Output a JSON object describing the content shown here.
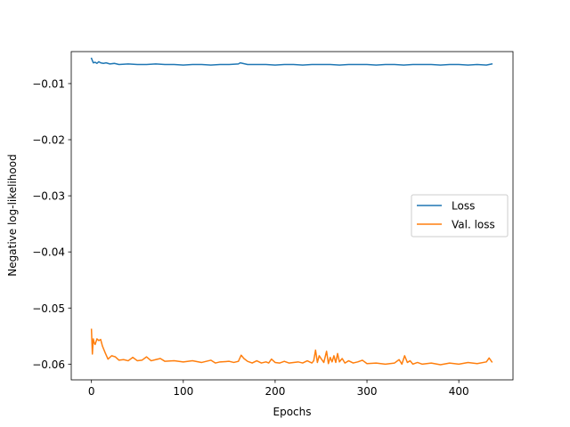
{
  "chart_data": {
    "type": "line",
    "xlabel": "Epochs",
    "ylabel": "Negative log-likelihood",
    "xlim": [
      -22,
      459
    ],
    "ylim": [
      -0.0628,
      -0.0043
    ],
    "xticks": [
      0,
      100,
      200,
      300,
      400
    ],
    "yticks": [
      -0.01,
      -0.02,
      -0.03,
      -0.04,
      -0.05,
      -0.06
    ],
    "ytick_labels": [
      "−0.01",
      "−0.02",
      "−0.03",
      "−0.04",
      "−0.05",
      "−0.06"
    ],
    "grid": false,
    "legend_position": "center-right",
    "series": [
      {
        "name": "Loss",
        "color": "#1f77b4",
        "x": [
          0,
          2,
          4,
          6,
          8,
          10,
          13,
          16,
          20,
          25,
          30,
          40,
          50,
          60,
          70,
          80,
          90,
          100,
          110,
          120,
          130,
          140,
          150,
          160,
          162,
          170,
          180,
          190,
          200,
          210,
          220,
          230,
          240,
          250,
          260,
          270,
          280,
          290,
          300,
          310,
          320,
          330,
          340,
          350,
          360,
          370,
          380,
          390,
          400,
          410,
          420,
          430,
          436
        ],
        "y": [
          -0.0055,
          -0.0063,
          -0.0062,
          -0.0064,
          -0.0061,
          -0.0063,
          -0.0064,
          -0.0063,
          -0.0065,
          -0.0064,
          -0.0066,
          -0.0065,
          -0.0066,
          -0.0066,
          -0.0065,
          -0.0066,
          -0.0066,
          -0.0067,
          -0.0066,
          -0.0066,
          -0.0067,
          -0.0066,
          -0.0066,
          -0.0065,
          -0.0063,
          -0.0066,
          -0.0066,
          -0.0066,
          -0.0067,
          -0.0066,
          -0.0066,
          -0.0067,
          -0.0066,
          -0.0066,
          -0.0066,
          -0.0067,
          -0.0066,
          -0.0066,
          -0.0066,
          -0.0067,
          -0.0066,
          -0.0066,
          -0.0067,
          -0.0066,
          -0.0066,
          -0.0066,
          -0.0067,
          -0.0066,
          -0.0066,
          -0.0067,
          -0.0066,
          -0.0067,
          -0.0065
        ]
      },
      {
        "name": "Val. loss",
        "color": "#ff7f0e",
        "x": [
          0,
          1,
          2,
          3,
          4,
          6,
          8,
          10,
          12,
          15,
          18,
          22,
          26,
          30,
          35,
          40,
          45,
          50,
          55,
          60,
          65,
          70,
          75,
          80,
          90,
          100,
          110,
          120,
          125,
          130,
          135,
          140,
          150,
          155,
          160,
          163,
          166,
          170,
          175,
          180,
          185,
          190,
          193,
          196,
          200,
          205,
          210,
          215,
          220,
          225,
          230,
          235,
          240,
          242,
          244,
          246,
          248,
          250,
          253,
          256,
          258,
          260,
          262,
          264,
          266,
          268,
          270,
          273,
          276,
          280,
          285,
          290,
          295,
          300,
          310,
          320,
          330,
          335,
          338,
          341,
          344,
          347,
          350,
          355,
          360,
          370,
          380,
          390,
          400,
          410,
          420,
          430,
          433,
          436
        ],
        "y": [
          -0.0538,
          -0.0582,
          -0.0555,
          -0.0562,
          -0.0565,
          -0.0555,
          -0.0558,
          -0.0556,
          -0.0568,
          -0.058,
          -0.0591,
          -0.0585,
          -0.0587,
          -0.0593,
          -0.0592,
          -0.0594,
          -0.0588,
          -0.0594,
          -0.0593,
          -0.0587,
          -0.0594,
          -0.0592,
          -0.059,
          -0.0595,
          -0.0594,
          -0.0596,
          -0.0594,
          -0.0597,
          -0.0595,
          -0.0593,
          -0.0598,
          -0.0596,
          -0.0595,
          -0.0597,
          -0.0595,
          -0.0584,
          -0.059,
          -0.0595,
          -0.0598,
          -0.0594,
          -0.0598,
          -0.0596,
          -0.0598,
          -0.0591,
          -0.0597,
          -0.0598,
          -0.0595,
          -0.0598,
          -0.0597,
          -0.0596,
          -0.0598,
          -0.0594,
          -0.0598,
          -0.0594,
          -0.0575,
          -0.0597,
          -0.0585,
          -0.059,
          -0.0597,
          -0.0577,
          -0.0599,
          -0.0588,
          -0.0596,
          -0.0585,
          -0.0597,
          -0.0581,
          -0.0596,
          -0.059,
          -0.0598,
          -0.0594,
          -0.0598,
          -0.0596,
          -0.0593,
          -0.0599,
          -0.0598,
          -0.06,
          -0.0598,
          -0.0592,
          -0.06,
          -0.0585,
          -0.0597,
          -0.0594,
          -0.06,
          -0.0597,
          -0.06,
          -0.0598,
          -0.0601,
          -0.0598,
          -0.06,
          -0.0597,
          -0.0599,
          -0.0596,
          -0.0589,
          -0.0596
        ]
      }
    ]
  }
}
